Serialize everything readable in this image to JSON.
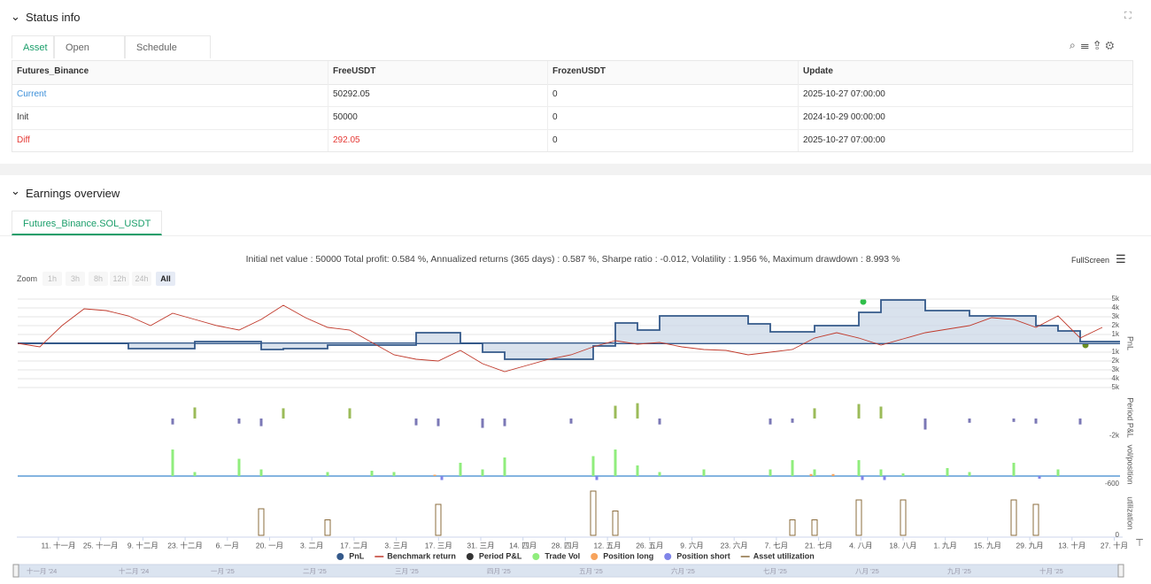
{
  "status": {
    "title": "Status info",
    "tabs": [
      "Asset",
      "Open orders",
      "Schedule orders"
    ],
    "table": {
      "header": [
        "Futures_Binance",
        "FreeUSDT",
        "FrozenUSDT",
        "Update"
      ],
      "rows": [
        [
          "Current",
          "50292.05",
          "0",
          "2025-10-27 07:00:00"
        ],
        [
          "Init",
          "50000",
          "0",
          "2024-10-29 00:00:00"
        ],
        [
          "Diff",
          "292.05",
          "0",
          "2025-10-27 07:00:00"
        ]
      ]
    }
  },
  "earnings": {
    "title": "Earnings overview",
    "tab": "Futures_Binance.SOL_USDT",
    "summary": "Initial net value : 50000 Total profit: 0.584 %, Annualized returns (365 days) : 0.587 %, Sharpe ratio : -0.012, Volatility : 1.956 %, Maximum drawdown : 8.993 %",
    "fullscreen": "FullScreen",
    "zoom": "Zoom",
    "zoom_buttons": [
      "1h",
      "3h",
      "8h",
      "12h",
      "24h",
      "All"
    ]
  },
  "x_axis": {
    "labels": [
      "11. 十一月",
      "25. 十一月",
      "9. 十二月",
      "23. 十二月",
      "6. 一月",
      "20. 一月",
      "3. 二月",
      "17. 二月",
      "3. 三月",
      "17. 三月",
      "31. 三月",
      "14. 四月",
      "28. 四月",
      "12. 五月",
      "26. 五月",
      "9. 六月",
      "23. 六月",
      "7. 七月",
      "21. 七月",
      "4. 八月",
      "18. 八月",
      "1. 九月",
      "15. 九月",
      "29. 九月",
      "13. 十月",
      "27. 十月"
    ]
  },
  "navigator": {
    "labels": [
      "十一月 '24",
      "十二月 '24",
      "一月 '25",
      "二月 '25",
      "三月 '25",
      "四月 '25",
      "五月 '25",
      "六月 '25",
      "七月 '25",
      "八月 '25",
      "九月 '25",
      "十月 '25"
    ]
  },
  "chart_data": [
    {
      "type": "line",
      "ylabel": "PnL",
      "ylim": [
        -5500,
        5500
      ],
      "grid": true,
      "yticks": [
        {
          "value": 5000,
          "label": "5k"
        },
        {
          "value": 4000,
          "label": "4k"
        },
        {
          "value": 3000,
          "label": "3k"
        },
        {
          "value": 2000,
          "label": "2k"
        },
        {
          "value": 1000,
          "label": "1k"
        },
        {
          "value": -1000,
          "label": "-1k"
        },
        {
          "value": -2000,
          "label": "-2k"
        },
        {
          "value": -3000,
          "label": "-3k"
        },
        {
          "value": -4000,
          "label": "-4k"
        },
        {
          "value": -5000,
          "label": "-5k"
        }
      ],
      "series": [
        {
          "name": "PnL",
          "color": "#34598a",
          "step": true,
          "area": true,
          "values": [
            0,
            0,
            0,
            0,
            0,
            -600,
            -600,
            -600,
            200,
            200,
            200,
            -700,
            -600,
            -600,
            -200,
            -200,
            -200,
            -200,
            1200,
            1200,
            0,
            -1000,
            -1800,
            -1800,
            -1800,
            -1800,
            -300,
            2300,
            1500,
            3100,
            3100,
            3100,
            3100,
            2200,
            1300,
            1300,
            2000,
            2000,
            3500,
            4900,
            4900,
            3700,
            3700,
            3100,
            3100,
            3100,
            2000,
            1400,
            200,
            200
          ]
        },
        {
          "name": "Benchmark return",
          "color": "#c0392b",
          "values": [
            0,
            -400,
            2000,
            3900,
            3700,
            3100,
            2000,
            3400,
            2700,
            2000,
            1500,
            2700,
            4300,
            2900,
            1800,
            1500,
            100,
            -1300,
            -1800,
            -2000,
            -800,
            -2300,
            -3200,
            -2500,
            -1800,
            -1300,
            -400,
            300,
            -100,
            100,
            -400,
            -700,
            -800,
            -1300,
            -1000,
            -700,
            600,
            1200,
            600,
            -200,
            500,
            1200,
            1600,
            2000,
            2900,
            2700,
            1800,
            3100,
            600,
            1800
          ]
        }
      ]
    },
    {
      "type": "bar",
      "ylabel": "Period P&L",
      "ylim": [
        -2500,
        2700
      ],
      "yticks": [
        {
          "value": -2000,
          "label": "-2k"
        }
      ],
      "series": [
        {
          "name": "Period P&L",
          "color": "#333333",
          "positive_color": "#9bbb59",
          "negative_color": "#7b78b6",
          "values": [
            0,
            0,
            0,
            0,
            0,
            0,
            0,
            -700,
            1300,
            0,
            -600,
            -900,
            1200,
            0,
            0,
            1200,
            0,
            0,
            -800,
            -900,
            0,
            -1100,
            -900,
            0,
            0,
            -600,
            0,
            1500,
            1800,
            -700,
            0,
            0,
            0,
            0,
            -700,
            -500,
            1200,
            0,
            1700,
            1400,
            0,
            -1300,
            0,
            -500,
            0,
            -400,
            -600,
            0,
            -700,
            0
          ]
        }
      ]
    },
    {
      "type": "bar",
      "ylabel": "vol/position",
      "ylim": [
        -800,
        2400
      ],
      "yticks": [
        -600
      ],
      "series": [
        {
          "name": "Trade Vol",
          "color": "#90ed7d",
          "values": [
            0,
            0,
            0,
            0,
            0,
            0,
            0,
            2000,
            300,
            0,
            1300,
            500,
            0,
            0,
            300,
            0,
            400,
            300,
            0,
            0,
            1000,
            500,
            1400,
            0,
            0,
            0,
            1500,
            2000,
            800,
            300,
            0,
            500,
            0,
            0,
            500,
            1200,
            500,
            0,
            1200,
            500,
            200,
            0,
            600,
            300,
            0,
            1000,
            0,
            500,
            0,
            0
          ]
        },
        {
          "name": "Position long",
          "color": "#f7a35c",
          "values": [
            0,
            0,
            0,
            0,
            0,
            0,
            0,
            0,
            0,
            0,
            0,
            0,
            0,
            0,
            0,
            0,
            0,
            0,
            0,
            100,
            0,
            0,
            0,
            0,
            0,
            0,
            0,
            0,
            0,
            0,
            0,
            0,
            0,
            0,
            0,
            0,
            150,
            150,
            0,
            0,
            0,
            0,
            0,
            0,
            0,
            0,
            0,
            0,
            0,
            0
          ]
        },
        {
          "name": "Position short",
          "color": "#8085e9",
          "values": [
            0,
            0,
            0,
            0,
            0,
            0,
            0,
            0,
            0,
            0,
            0,
            0,
            0,
            0,
            0,
            0,
            0,
            0,
            0,
            -300,
            0,
            0,
            0,
            0,
            0,
            0,
            -300,
            0,
            0,
            0,
            0,
            0,
            0,
            0,
            0,
            0,
            0,
            0,
            -300,
            -300,
            0,
            0,
            0,
            0,
            0,
            0,
            -200,
            0,
            0,
            0
          ]
        }
      ]
    },
    {
      "type": "bar",
      "ylabel": "utilization",
      "ylim": [
        0,
        100
      ],
      "outline": true,
      "yticks": [
        0
      ],
      "series": [
        {
          "name": "Asset utilization",
          "color": "#8b6c3e",
          "values": [
            0,
            0,
            0,
            0,
            0,
            0,
            0,
            0,
            0,
            0,
            0,
            60,
            0,
            0,
            35,
            0,
            0,
            0,
            0,
            70,
            0,
            0,
            0,
            0,
            0,
            0,
            100,
            55,
            0,
            0,
            0,
            0,
            0,
            0,
            0,
            35,
            35,
            0,
            80,
            0,
            80,
            0,
            0,
            0,
            0,
            80,
            70,
            0,
            0,
            0
          ]
        }
      ]
    }
  ]
}
